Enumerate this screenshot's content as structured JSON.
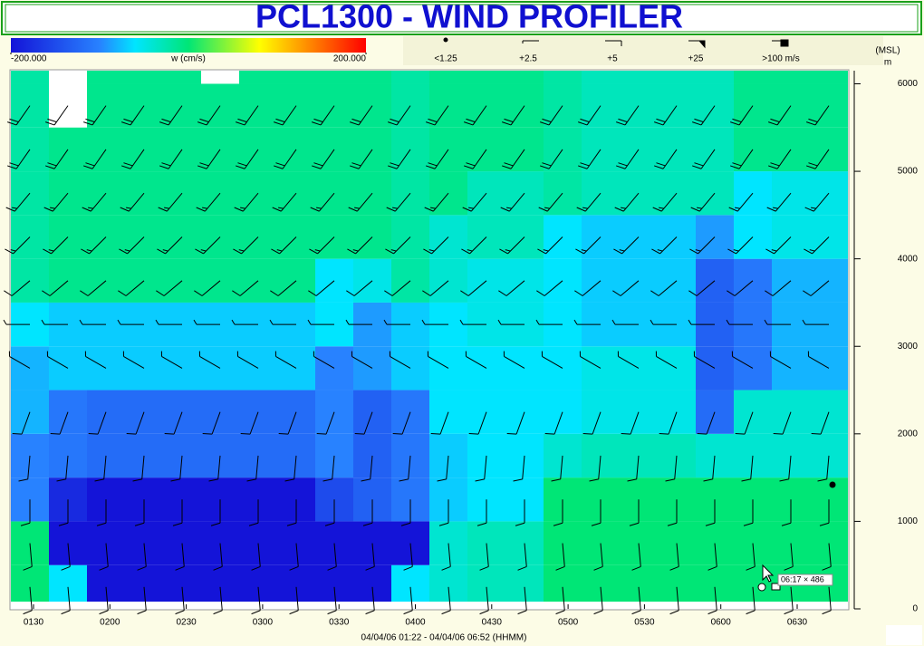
{
  "chart_data": {
    "type": "heatmap",
    "title": "PCL1300 - WIND PROFILER",
    "zlabel": "w (cm/s)",
    "zlim": [
      -200,
      200
    ],
    "zticks": [
      {
        "value": -200,
        "label": "-200.000"
      },
      {
        "value": 200,
        "label": "200.000"
      }
    ],
    "barb_legend": [
      "<1.25",
      "+2.5",
      "+5",
      "+25",
      ">100 m/s"
    ],
    "ylabel": "(MSL)",
    "yunit": "m",
    "ylim": [
      0,
      6150
    ],
    "yticks": [
      0,
      1000,
      2000,
      3000,
      4000,
      5000,
      6000
    ],
    "xticks": [
      "0130",
      "0200",
      "0230",
      "0300",
      "0330",
      "0400",
      "0430",
      "0500",
      "0530",
      "0600",
      "0630"
    ],
    "xlabel": "04/04/06 01:22 - 04/04/06 06:52 (HHMM)",
    "row_height": 500,
    "values": [
      [
        0,
        0,
        -100,
        -100,
        -80,
        -80,
        -60,
        -20,
        -20,
        -20,
        -20,
        -20,
        -20
      ],
      [
        -60,
        -200,
        -180,
        -110,
        -110,
        -70,
        -70,
        -10,
        -10,
        -10,
        -10,
        null,
        null
      ],
      [
        -200,
        -200,
        -200,
        -120,
        -120,
        -70,
        -70,
        -10,
        -10,
        -10,
        -10,
        -10,
        -10
      ],
      [
        -200,
        -200,
        -200,
        -120,
        -120,
        -70,
        -70,
        -10,
        -10,
        -10,
        -10,
        -10,
        -10
      ],
      [
        -200,
        -200,
        -200,
        -120,
        -120,
        -70,
        -70,
        -10,
        -10,
        -10,
        -10,
        -10,
        -10
      ],
      [
        -200,
        -200,
        -200,
        -120,
        -120,
        -70,
        -70,
        -10,
        -10,
        -10,
        -10,
        -10,
        null
      ],
      [
        -200,
        -200,
        -200,
        -120,
        -120,
        -70,
        -70,
        -10,
        -10,
        -10,
        -10,
        -10,
        -10
      ],
      [
        -200,
        -200,
        -200,
        -120,
        -120,
        -70,
        -70,
        -10,
        -10,
        -10,
        -10,
        -10,
        -10
      ],
      [
        -200,
        -200,
        -150,
        -100,
        -100,
        -100,
        -60,
        -60,
        -10,
        -10,
        -10,
        -10,
        -10
      ],
      [
        -200,
        -200,
        -130,
        -130,
        -130,
        -90,
        -90,
        -50,
        -10,
        -10,
        -10,
        -10,
        -10
      ],
      [
        -60,
        -200,
        -110,
        -110,
        -110,
        -70,
        -70,
        -20,
        -20,
        -20,
        -20,
        -20,
        -20
      ],
      [
        -40,
        -40,
        -70,
        -70,
        -60,
        -60,
        -60,
        -40,
        -40,
        -10,
        -10,
        -10,
        -10
      ],
      [
        -30,
        -30,
        -60,
        -60,
        -60,
        -60,
        -50,
        -50,
        -30,
        -30,
        -10,
        -10,
        -10
      ],
      [
        -30,
        -30,
        -60,
        -60,
        -60,
        -60,
        -50,
        -50,
        -30,
        -30,
        -10,
        -10,
        -10
      ],
      [
        0,
        0,
        0,
        -40,
        -60,
        -60,
        -60,
        -60,
        -60,
        -20,
        -20,
        -20,
        -20
      ],
      [
        0,
        0,
        0,
        -30,
        -50,
        -50,
        -70,
        -70,
        -70,
        -30,
        -30,
        -30,
        -30
      ],
      [
        0,
        0,
        0,
        -30,
        -50,
        -50,
        -70,
        -70,
        -70,
        -30,
        -30,
        -30,
        -30
      ],
      [
        0,
        0,
        0,
        -30,
        -50,
        -50,
        -70,
        -70,
        -70,
        -30,
        -30,
        -30,
        -30
      ],
      [
        0,
        0,
        0,
        -40,
        -120,
        -130,
        -130,
        -130,
        -90,
        -30,
        -30,
        -30,
        -30
      ],
      [
        0,
        0,
        0,
        -40,
        -40,
        -110,
        -110,
        -110,
        -60,
        -60,
        -10,
        -10,
        -10
      ],
      [
        0,
        0,
        0,
        -40,
        -40,
        -80,
        -80,
        -80,
        -50,
        -50,
        -10,
        -10,
        -10
      ],
      [
        0,
        0,
        0,
        -40,
        -40,
        -80,
        -80,
        -80,
        -50,
        -50,
        -10,
        -10,
        -10
      ]
    ],
    "wind_direction": [
      175,
      175,
      180,
      185,
      200,
      300,
      270,
      230,
      225,
      220,
      215,
      215,
      215
    ],
    "wind_speed": [
      10,
      10,
      12,
      12,
      10,
      8,
      8,
      12,
      15,
      18,
      20,
      22,
      22
    ],
    "tooltip": "06:17 × 486"
  }
}
